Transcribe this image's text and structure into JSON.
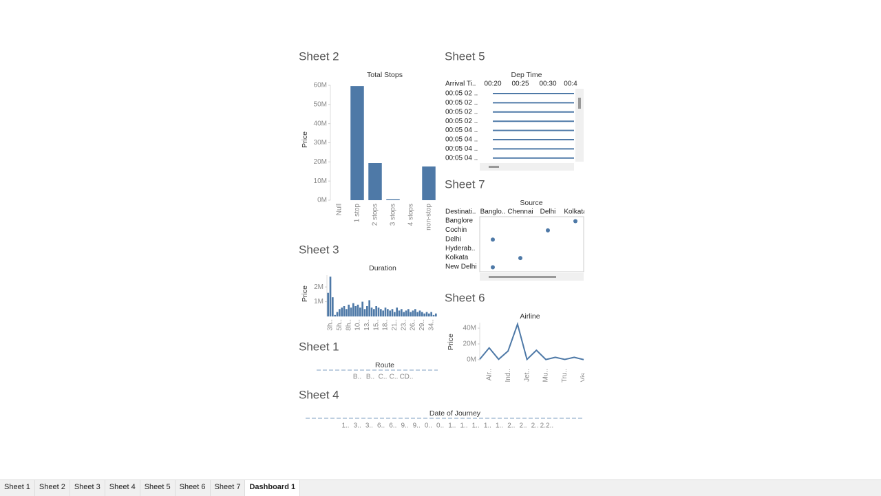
{
  "chart_data": [
    {
      "sheet": "Sheet 2",
      "type": "bar",
      "title": "Total Stops",
      "ylabel": "Price",
      "categories": [
        "Null",
        "1 stop",
        "2 stops",
        "3 stops",
        "4 stops",
        "non-stop"
      ],
      "values": [
        0,
        59600000,
        19400000,
        500000,
        0,
        17600000
      ],
      "color": "#4e79a7",
      "ylim": [
        0,
        60000000
      ],
      "yticks": [
        {
          "value": 0,
          "label": "0M"
        },
        {
          "value": 10000000,
          "label": "10M"
        },
        {
          "value": 20000000,
          "label": "20M"
        },
        {
          "value": 30000000,
          "label": "30M"
        },
        {
          "value": 40000000,
          "label": "40M"
        },
        {
          "value": 50000000,
          "label": "50M"
        },
        {
          "value": 60000000,
          "label": "60M"
        }
      ]
    },
    {
      "sheet": "Sheet 5",
      "type": "rowlines",
      "title": "Dep Time",
      "row_header": "Arrival Ti..",
      "columns": [
        "00:20",
        "00:25",
        "00:30",
        "00:4"
      ],
      "rows": [
        "00:05 02 ..",
        "00:05 02 ..",
        "00:05 02 ..",
        "00:05 02 ..",
        "00:05 04 ..",
        "00:05 04 ..",
        "00:05 04 ..",
        "00:05 04 .."
      ],
      "color": "#4e79a7"
    },
    {
      "sheet": "Sheet 7",
      "type": "dots",
      "title": "Source",
      "row_header": "Destinati..",
      "columns": [
        "Banglo..",
        "Chennai",
        "Delhi",
        "Kolkata"
      ],
      "rows": [
        "Banglore",
        "Cochin",
        "Delhi",
        "Hyderab..",
        "Kolkata",
        "New Delhi"
      ],
      "dots": [
        3,
        2,
        0,
        null,
        1,
        0
      ],
      "color": "#4e79a7"
    },
    {
      "sheet": "Sheet 3",
      "type": "bar",
      "title": "Duration",
      "ylabel": "Price",
      "color": "#4e79a7",
      "categories": [
        null,
        "3h..",
        null,
        null,
        null,
        "5h..",
        null,
        null,
        null,
        "8h..",
        null,
        null,
        null,
        "10..",
        null,
        null,
        null,
        "13..",
        null,
        null,
        null,
        "15..",
        null,
        null,
        null,
        "18..",
        null,
        null,
        null,
        "21..",
        null,
        null,
        null,
        "23..",
        null,
        null,
        null,
        "26..",
        null,
        null,
        null,
        "29..",
        null,
        null,
        null,
        "34..",
        null,
        null
      ],
      "values": [
        1600000,
        2700000,
        1300000,
        100000,
        300000,
        500000,
        600000,
        700000,
        500000,
        800000,
        600000,
        900000,
        700000,
        800000,
        600000,
        1000000,
        500000,
        700000,
        1100000,
        600000,
        500000,
        700000,
        600000,
        500000,
        400000,
        600000,
        500000,
        400000,
        500000,
        300000,
        600000,
        400000,
        500000,
        300000,
        400000,
        500000,
        300000,
        400000,
        500000,
        300000,
        400000,
        300000,
        200000,
        300000,
        200000,
        300000,
        100000,
        200000
      ],
      "ylim": [
        0,
        2800000
      ],
      "yticks": [
        {
          "value": 1000000,
          "label": "1M"
        },
        {
          "value": 2000000,
          "label": "2M"
        }
      ]
    },
    {
      "sheet": "Sheet 6",
      "type": "line",
      "title": "Airline",
      "ylabel": "Price",
      "color": "#4e79a7",
      "categories": [
        null,
        "Air..",
        null,
        "Ind..",
        null,
        "Jet..",
        null,
        "Mu..",
        null,
        "Tru..",
        null,
        "Vis.."
      ],
      "values": [
        500000,
        15000000,
        500000,
        11000000,
        45000000,
        300000,
        12000000,
        200000,
        3000000,
        300000,
        3000000,
        100000
      ],
      "ylim": [
        -1000000,
        47000000
      ],
      "yticks": [
        {
          "value": 0,
          "label": "0M"
        },
        {
          "value": 20000000,
          "label": "20M"
        },
        {
          "value": 40000000,
          "label": "40M"
        }
      ]
    },
    {
      "sheet": "Sheet 1",
      "type": "strip",
      "title": "Route",
      "categories": [
        "B..",
        "B..",
        "C..",
        "C..",
        "C..",
        "D.."
      ]
    },
    {
      "sheet": "Sheet 4",
      "type": "strip",
      "title": "Date of Journey",
      "categories": [
        "1..",
        "3..",
        "3..",
        "6..",
        "6..",
        "9..",
        "9..",
        "0..",
        "0..",
        "1..",
        "1..",
        "1..",
        "1..",
        "1..",
        "2..",
        "2..",
        "2..",
        "2.2.."
      ]
    }
  ],
  "tabs": [
    "Sheet 1",
    "Sheet 2",
    "Sheet 3",
    "Sheet 4",
    "Sheet 5",
    "Sheet 6",
    "Sheet 7",
    "Dashboard 1"
  ]
}
